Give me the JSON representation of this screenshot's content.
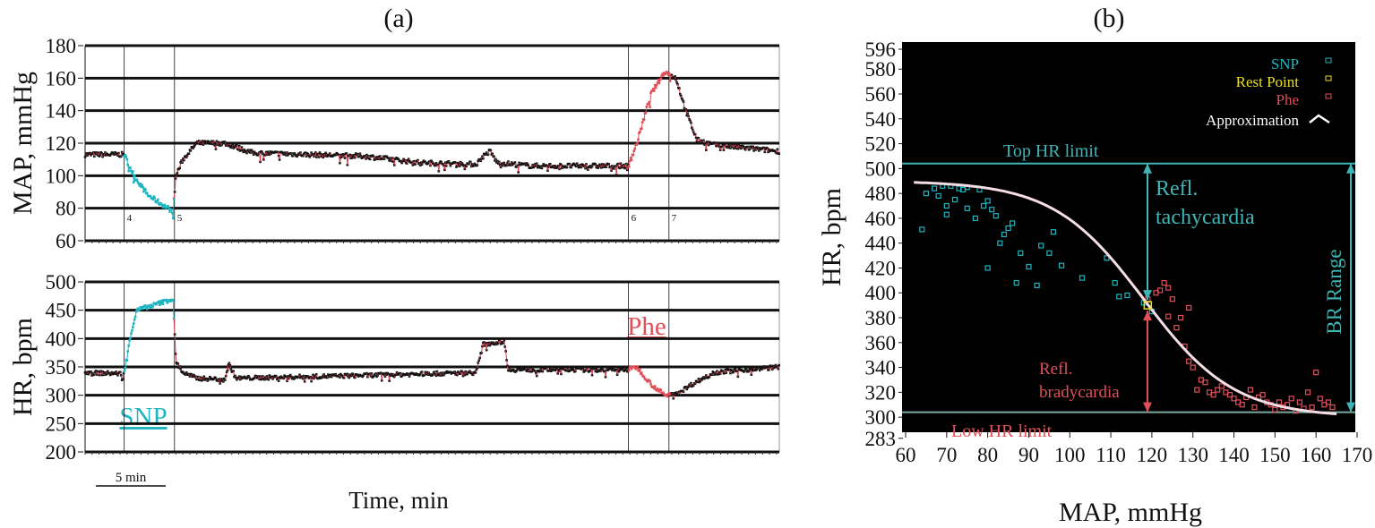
{
  "panel_labels": {
    "a": "(a)",
    "b": "(b)"
  },
  "colors": {
    "snp": "#1fb5c0",
    "phe": "#e0505a",
    "rest": "#e8e020",
    "approx": "#ffffff",
    "trace": "#111111",
    "limit": "#3fb5b5"
  },
  "chart_data": [
    {
      "type": "line",
      "id": "map-trace",
      "ylabel": "MAP, mmHg",
      "ylim": [
        60,
        180
      ],
      "yticks": [
        "60",
        "80",
        "100",
        "120",
        "140",
        "160",
        "180"
      ],
      "xlim_min": [
        0,
        49.7
      ],
      "markers": [
        {
          "t": 2.8,
          "label": "4"
        },
        {
          "t": 6.4,
          "label": "5"
        },
        {
          "t": 38.9,
          "label": "6"
        },
        {
          "t": 41.8,
          "label": "7"
        }
      ],
      "highlight": [
        {
          "from": 2.8,
          "to": 6.4,
          "series": "snp"
        },
        {
          "from": 38.9,
          "to": 42.0,
          "series": "phe"
        }
      ],
      "keypoints": [
        [
          0,
          113
        ],
        [
          2.8,
          113
        ],
        [
          3.5,
          100
        ],
        [
          4.5,
          88
        ],
        [
          6.3,
          78
        ],
        [
          6.5,
          100
        ],
        [
          7,
          110
        ],
        [
          8,
          120
        ],
        [
          10,
          120
        ],
        [
          12,
          114
        ],
        [
          20,
          112
        ],
        [
          24,
          108
        ],
        [
          28,
          107
        ],
        [
          28.5,
          112
        ],
        [
          29,
          115
        ],
        [
          29.5,
          108
        ],
        [
          32,
          106
        ],
        [
          38.9,
          106
        ],
        [
          39.5,
          120
        ],
        [
          40.5,
          150
        ],
        [
          41.5,
          164
        ],
        [
          42.3,
          160
        ],
        [
          43,
          140
        ],
        [
          43.8,
          122
        ],
        [
          45,
          119
        ],
        [
          49.7,
          115
        ]
      ]
    },
    {
      "type": "line",
      "id": "hr-trace",
      "ylabel": "HR, bpm",
      "xlabel": "Time, min",
      "scale_bar": "5 min",
      "ylim": [
        200,
        500
      ],
      "yticks": [
        "200",
        "250",
        "300",
        "350",
        "400",
        "450",
        "500"
      ],
      "xlim_min": [
        0,
        49.7
      ],
      "annotations": {
        "snp": "SNP",
        "phe": "Phe"
      },
      "highlight": [
        {
          "from": 2.8,
          "to": 6.4,
          "series": "snp"
        },
        {
          "from": 38.9,
          "to": 42.0,
          "series": "phe"
        }
      ],
      "keypoints": [
        [
          0,
          340
        ],
        [
          2.8,
          338
        ],
        [
          3.2,
          400
        ],
        [
          3.7,
          450
        ],
        [
          6.3,
          470
        ],
        [
          6.5,
          360
        ],
        [
          7,
          340
        ],
        [
          8,
          330
        ],
        [
          10,
          328
        ],
        [
          10.3,
          355
        ],
        [
          10.8,
          330
        ],
        [
          20,
          335
        ],
        [
          28,
          340
        ],
        [
          28.5,
          390
        ],
        [
          30,
          395
        ],
        [
          30.3,
          345
        ],
        [
          38.9,
          345
        ],
        [
          39.5,
          350
        ],
        [
          40.5,
          320
        ],
        [
          41.5,
          300
        ],
        [
          42.5,
          305
        ],
        [
          43.5,
          320
        ],
        [
          45,
          340
        ],
        [
          49.7,
          350
        ]
      ]
    },
    {
      "type": "scatter",
      "id": "baroreflex",
      "xlabel": "MAP, mmHg",
      "ylabel": "HR, bpm",
      "xlim": [
        60,
        170
      ],
      "ylim": [
        283,
        596
      ],
      "xticks": [
        "60",
        "70",
        "80",
        "90",
        "100",
        "110",
        "120",
        "130",
        "140",
        "150",
        "160",
        "170"
      ],
      "yticks": [
        "283",
        "300",
        "320",
        "340",
        "360",
        "380",
        "400",
        "420",
        "440",
        "460",
        "480",
        "500",
        "520",
        "540",
        "560",
        "580",
        "596"
      ],
      "legend": {
        "position": "top-right",
        "entries": [
          "SNP",
          "Rest Point",
          "Phe",
          "Approximation"
        ]
      },
      "top_limit": {
        "value": 504,
        "label": "Top HR limit"
      },
      "low_limit": {
        "value": 304,
        "label": "Low HR limit"
      },
      "rest_point": [
        119,
        390
      ],
      "annotations": {
        "tachy1": "Refl.",
        "tachy2": "tachycardia",
        "brady1": "Refl.",
        "brady2": "bradycardia",
        "range": "BR Range"
      },
      "approximation": {
        "min": 300,
        "max": 490,
        "mid": 118,
        "slope": 11,
        "from": 62,
        "to": 165
      },
      "snp": [
        [
          64,
          451
        ],
        [
          65,
          480
        ],
        [
          67,
          484
        ],
        [
          68,
          478
        ],
        [
          69,
          486
        ],
        [
          70,
          470
        ],
        [
          70,
          463
        ],
        [
          71,
          486
        ],
        [
          72,
          475
        ],
        [
          73,
          484
        ],
        [
          74,
          483
        ],
        [
          75,
          485
        ],
        [
          75,
          468
        ],
        [
          77,
          460
        ],
        [
          78,
          483
        ],
        [
          79,
          470
        ],
        [
          80,
          474
        ],
        [
          80,
          420
        ],
        [
          81,
          467
        ],
        [
          82,
          462
        ],
        [
          83,
          440
        ],
        [
          84,
          447
        ],
        [
          85,
          452
        ],
        [
          86,
          456
        ],
        [
          87,
          408
        ],
        [
          88,
          432
        ],
        [
          90,
          421
        ],
        [
          92,
          406
        ],
        [
          93,
          438
        ],
        [
          95,
          432
        ],
        [
          96,
          449
        ],
        [
          98,
          422
        ],
        [
          103,
          412
        ],
        [
          109,
          428
        ],
        [
          111,
          408
        ],
        [
          112,
          397
        ],
        [
          114,
          398
        ],
        [
          118,
          392
        ],
        [
          120,
          385
        ]
      ],
      "phe": [
        [
          119,
          395
        ],
        [
          121,
          400
        ],
        [
          122,
          402
        ],
        [
          123,
          408
        ],
        [
          124,
          404
        ],
        [
          125,
          395
        ],
        [
          126,
          372
        ],
        [
          127,
          380
        ],
        [
          128,
          357
        ],
        [
          129,
          345
        ],
        [
          130,
          340
        ],
        [
          131,
          322
        ],
        [
          132,
          330
        ],
        [
          133,
          328
        ],
        [
          134,
          320
        ],
        [
          135,
          318
        ],
        [
          136,
          322
        ],
        [
          137,
          325
        ],
        [
          138,
          320
        ],
        [
          139,
          318
        ],
        [
          140,
          315
        ],
        [
          141,
          312
        ],
        [
          142,
          310
        ],
        [
          143,
          316
        ],
        [
          144,
          322
        ],
        [
          145,
          308
        ],
        [
          146,
          316
        ],
        [
          147,
          318
        ],
        [
          148,
          312
        ],
        [
          149,
          310
        ],
        [
          150,
          306
        ],
        [
          151,
          312
        ],
        [
          152,
          308
        ],
        [
          153,
          310
        ],
        [
          154,
          315
        ],
        [
          155,
          305
        ],
        [
          156,
          312
        ],
        [
          157,
          307
        ],
        [
          158,
          320
        ],
        [
          159,
          308
        ],
        [
          160,
          336
        ],
        [
          161,
          315
        ],
        [
          162,
          310
        ],
        [
          163,
          312
        ],
        [
          164,
          308
        ],
        [
          129,
          388
        ],
        [
          124,
          381
        ]
      ]
    }
  ]
}
